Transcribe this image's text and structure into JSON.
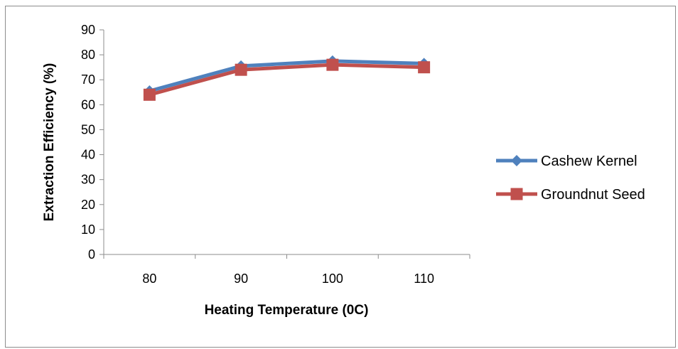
{
  "chart_data": {
    "type": "line",
    "title": "",
    "xlabel": "Heating Temperature (0C)",
    "ylabel": "Extraction Efficiency (%)",
    "categories": [
      "80",
      "90",
      "100",
      "110"
    ],
    "yticks": [
      "0",
      "10",
      "20",
      "30",
      "40",
      "50",
      "60",
      "70",
      "80",
      "90"
    ],
    "ylim": [
      0,
      90
    ],
    "grid": false,
    "legend_position": "right",
    "series": [
      {
        "name": "Cashew Kernel",
        "values": [
          65.5,
          75.5,
          77.5,
          76.5
        ],
        "color": "#4f81bd",
        "marker": "diamond"
      },
      {
        "name": "Groundnut Seed",
        "values": [
          64,
          74,
          76,
          75
        ],
        "color": "#c0504d",
        "marker": "square"
      }
    ]
  }
}
